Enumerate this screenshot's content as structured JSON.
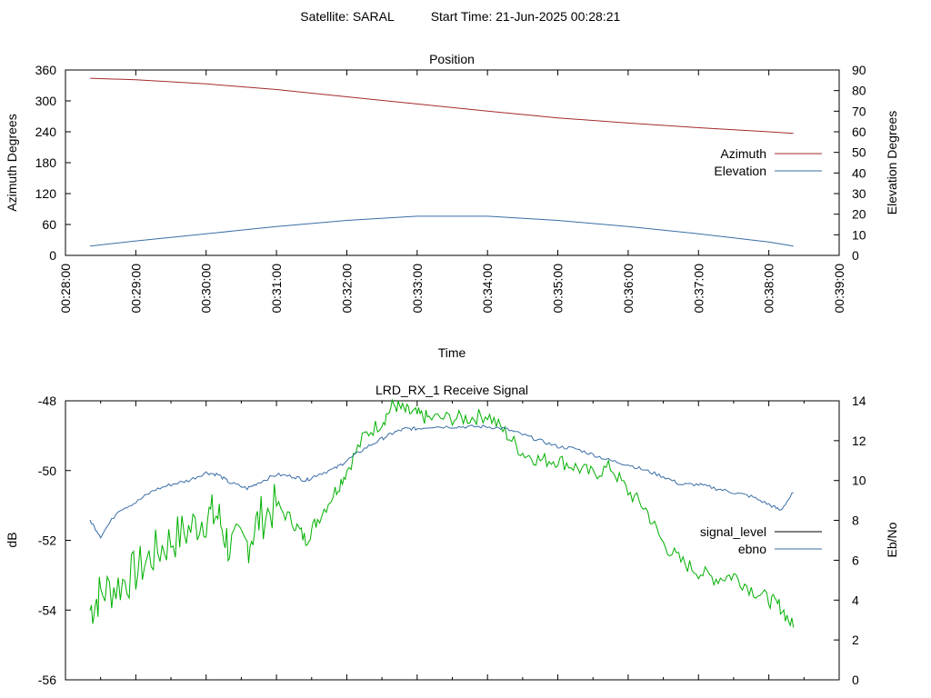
{
  "header": {
    "satellite_label": "Satellite: SARAL",
    "start_time_label": "Start Time: 21-Jun-2025 00:28:21"
  },
  "chart_data": [
    {
      "type": "line",
      "title": "Position",
      "xlabel": "Time",
      "ylabel": "Azimuth Degrees",
      "y2label": "Elevation Degrees",
      "xlim": [
        "00:28:00",
        "00:39:00"
      ],
      "ylim": [
        0,
        360
      ],
      "y2lim": [
        0,
        90
      ],
      "grid": false,
      "legend_position": "right",
      "xticks": [
        "00:28:00",
        "00:29:00",
        "00:30:00",
        "00:31:00",
        "00:32:00",
        "00:33:00",
        "00:34:00",
        "00:35:00",
        "00:36:00",
        "00:37:00",
        "00:38:00",
        "00:39:00"
      ],
      "yticks": [
        0,
        60,
        120,
        180,
        240,
        300,
        360
      ],
      "y2ticks": [
        0,
        10,
        20,
        30,
        40,
        50,
        60,
        70,
        80,
        90
      ],
      "series": [
        {
          "name": "Azimuth",
          "axis": "y",
          "color": "#a52a2a",
          "x": [
            "00:28:21",
            "00:29:00",
            "00:30:00",
            "00:31:00",
            "00:32:00",
            "00:33:00",
            "00:34:00",
            "00:35:00",
            "00:36:00",
            "00:37:00",
            "00:38:00",
            "00:38:21"
          ],
          "values": [
            344,
            341,
            333,
            322,
            308,
            294,
            280,
            267,
            257,
            248,
            240,
            237
          ]
        },
        {
          "name": "Elevation",
          "axis": "y2",
          "color": "#3a6ea5",
          "x": [
            "00:28:21",
            "00:29:00",
            "00:30:00",
            "00:31:00",
            "00:32:00",
            "00:33:00",
            "00:34:00",
            "00:35:00",
            "00:36:00",
            "00:37:00",
            "00:38:00",
            "00:38:21"
          ],
          "values": [
            4.5,
            7,
            10.5,
            14,
            17,
            19,
            19,
            17,
            14,
            10.5,
            6.5,
            4.5
          ]
        }
      ]
    },
    {
      "type": "line",
      "title": "LRD_RX_1 Receive Signal",
      "ylabel": "dB",
      "y2label": "Eb/No",
      "xlim": [
        "00:28:00",
        "00:39:00"
      ],
      "ylim": [
        -56,
        -48
      ],
      "y2lim": [
        0,
        14
      ],
      "grid": false,
      "legend_position": "right",
      "yticks": [
        -56,
        -54,
        -52,
        -50,
        -48
      ],
      "y2ticks": [
        0,
        2,
        4,
        6,
        8,
        10,
        12,
        14
      ],
      "series": [
        {
          "name": "signal_level",
          "axis": "y",
          "color": "#00b000",
          "x": [
            "00:28:21",
            "00:28:30",
            "00:28:45",
            "00:29:00",
            "00:29:15",
            "00:29:30",
            "00:29:45",
            "00:30:00",
            "00:30:10",
            "00:30:20",
            "00:30:35",
            "00:30:45",
            "00:31:00",
            "00:31:15",
            "00:31:25",
            "00:31:35",
            "00:31:50",
            "00:32:00",
            "00:32:15",
            "00:32:30",
            "00:32:40",
            "00:32:50",
            "00:33:00",
            "00:33:10",
            "00:33:30",
            "00:33:45",
            "00:34:00",
            "00:34:15",
            "00:34:30",
            "00:34:45",
            "00:35:00",
            "00:35:15",
            "00:35:30",
            "00:35:45",
            "00:36:00",
            "00:36:15",
            "00:36:30",
            "00:36:45",
            "00:37:00",
            "00:37:15",
            "00:37:30",
            "00:37:45",
            "00:38:00",
            "00:38:10",
            "00:38:21"
          ],
          "values": [
            -54.0,
            -53.5,
            -53.3,
            -52.9,
            -52.4,
            -52.0,
            -51.7,
            -51.3,
            -51.3,
            -52.2,
            -52.1,
            -51.4,
            -51.0,
            -51.5,
            -52.0,
            -51.4,
            -50.6,
            -50.0,
            -49.0,
            -48.6,
            -48.1,
            -48.3,
            -48.4,
            -48.5,
            -48.5,
            -48.5,
            -48.4,
            -48.9,
            -49.5,
            -49.7,
            -49.7,
            -49.9,
            -50.1,
            -49.9,
            -50.6,
            -51.1,
            -52.1,
            -52.6,
            -52.9,
            -53.1,
            -53.0,
            -53.4,
            -53.7,
            -53.9,
            -54.5
          ]
        },
        {
          "name": "ebno",
          "axis": "y2",
          "color": "#3a6ea5",
          "x": [
            "00:28:21",
            "00:28:30",
            "00:28:45",
            "00:29:00",
            "00:29:15",
            "00:29:30",
            "00:29:45",
            "00:30:00",
            "00:30:10",
            "00:30:20",
            "00:30:35",
            "00:30:45",
            "00:31:00",
            "00:31:15",
            "00:31:25",
            "00:31:35",
            "00:31:50",
            "00:32:00",
            "00:32:15",
            "00:32:30",
            "00:32:40",
            "00:32:50",
            "00:33:00",
            "00:33:10",
            "00:33:30",
            "00:33:45",
            "00:34:00",
            "00:34:15",
            "00:34:30",
            "00:34:45",
            "00:35:00",
            "00:35:15",
            "00:35:30",
            "00:35:45",
            "00:36:00",
            "00:36:15",
            "00:36:30",
            "00:36:45",
            "00:37:00",
            "00:37:15",
            "00:37:30",
            "00:37:45",
            "00:38:00",
            "00:38:10",
            "00:38:21"
          ],
          "values": [
            8.0,
            7.2,
            8.5,
            8.9,
            9.5,
            9.8,
            10.0,
            10.4,
            10.3,
            9.9,
            9.6,
            9.9,
            10.3,
            10.2,
            10.0,
            10.3,
            10.6,
            11.0,
            11.6,
            12.1,
            12.4,
            12.6,
            12.6,
            12.7,
            12.7,
            12.7,
            12.7,
            12.6,
            12.3,
            12.0,
            11.7,
            11.6,
            11.3,
            11.0,
            10.8,
            10.5,
            10.2,
            9.8,
            9.8,
            9.6,
            9.4,
            9.2,
            8.8,
            8.5,
            9.4
          ]
        }
      ]
    }
  ]
}
